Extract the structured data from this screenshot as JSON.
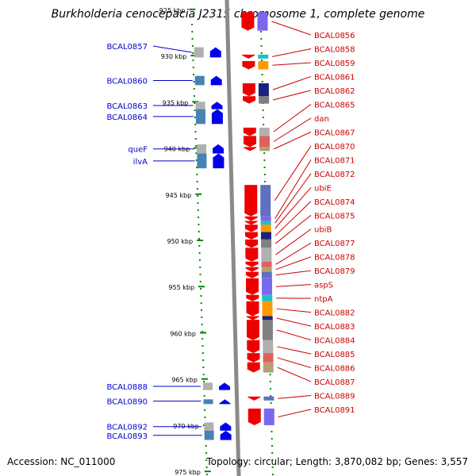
{
  "title": "Burkholderia cenocepacia J2315 chromosome 1, complete genome",
  "footer": {
    "accession": "Accession: NC_011000",
    "summary": "Topology: circular; Length: 3,870,082 bp; Genes: 3,557"
  },
  "colors": {
    "left_label": "#0000cc",
    "right_label": "#cc0000",
    "forward_gene": "#0000ee",
    "reverse_gene": "#ee0000",
    "ruler_tick": "#008800",
    "axis": "#808080"
  },
  "map": {
    "view_start_kbp": 924.5,
    "view_end_kbp": 975.5,
    "kbp_ticks": [
      925,
      930,
      935,
      940,
      945,
      950,
      955,
      960,
      965,
      970,
      975
    ],
    "kbp_unit": "kbp"
  },
  "left_genes": [
    {
      "name": "BCAL0857",
      "start_kbp": 929.1,
      "end_kbp": 930.2
    },
    {
      "name": "BCAL0860",
      "start_kbp": 932.2,
      "end_kbp": 933.2
    },
    {
      "name": "BCAL0863",
      "start_kbp": 935.0,
      "end_kbp": 935.8
    },
    {
      "name": "BCAL0864",
      "start_kbp": 935.8,
      "end_kbp": 937.4
    },
    {
      "name": "queF",
      "start_kbp": 939.6,
      "end_kbp": 940.6
    },
    {
      "name": "ilvA",
      "start_kbp": 940.6,
      "end_kbp": 942.2
    },
    {
      "name": "BCAL0888",
      "start_kbp": 965.4,
      "end_kbp": 966.2
    },
    {
      "name": "BCAL0890",
      "start_kbp": 967.2,
      "end_kbp": 967.6
    },
    {
      "name": "BCAL0892",
      "start_kbp": 969.7,
      "end_kbp": 970.6
    },
    {
      "name": "BCAL0893",
      "start_kbp": 970.6,
      "end_kbp": 971.6
    }
  ],
  "right_genes": [
    {
      "name": "BCAL0856",
      "start_kbp": 925.3,
      "end_kbp": 927.3
    },
    {
      "name": "BCAL0858",
      "start_kbp": 929.9,
      "end_kbp": 930.2
    },
    {
      "name": "BCAL0859",
      "start_kbp": 930.6,
      "end_kbp": 931.5
    },
    {
      "name": "BCAL0861",
      "start_kbp": 933.0,
      "end_kbp": 934.4
    },
    {
      "name": "BCAL0862",
      "start_kbp": 934.4,
      "end_kbp": 935.2
    },
    {
      "name": "BCAL0865",
      "start_kbp": 937.8,
      "end_kbp": 938.7
    },
    {
      "name": "dan",
      "start_kbp": 938.7,
      "end_kbp": 939.9
    },
    {
      "name": "BCAL0867",
      "start_kbp": 939.9,
      "end_kbp": 940.3
    },
    {
      "name": "BCAL0870",
      "start_kbp": 944.0,
      "end_kbp": 947.4
    },
    {
      "name": "BCAL0871",
      "start_kbp": 947.4,
      "end_kbp": 947.9
    },
    {
      "name": "BCAL0872",
      "start_kbp": 947.9,
      "end_kbp": 948.3
    },
    {
      "name": "ubiE",
      "start_kbp": 948.3,
      "end_kbp": 949.1
    },
    {
      "name": "BCAL0874",
      "start_kbp": 949.1,
      "end_kbp": 949.9
    },
    {
      "name": "BCAL0875",
      "start_kbp": 949.9,
      "end_kbp": 950.8
    },
    {
      "name": "ubiB",
      "start_kbp": 950.8,
      "end_kbp": 952.3
    },
    {
      "name": "BCAL0877",
      "start_kbp": 952.3,
      "end_kbp": 952.9
    },
    {
      "name": "BCAL0878",
      "start_kbp": 952.9,
      "end_kbp": 953.4
    },
    {
      "name": "BCAL0879",
      "start_kbp": 953.4,
      "end_kbp": 954.1
    },
    {
      "name": "aspS",
      "start_kbp": 954.1,
      "end_kbp": 955.9
    },
    {
      "name": "ntpA",
      "start_kbp": 955.9,
      "end_kbp": 956.6
    },
    {
      "name": "BCAL0882",
      "start_kbp": 956.6,
      "end_kbp": 958.2
    },
    {
      "name": "BCAL0883",
      "start_kbp": 958.2,
      "end_kbp": 958.6
    },
    {
      "name": "BCAL0884",
      "start_kbp": 958.6,
      "end_kbp": 960.8
    },
    {
      "name": "BCAL0885",
      "start_kbp": 960.8,
      "end_kbp": 962.2
    },
    {
      "name": "BCAL0886",
      "start_kbp": 962.2,
      "end_kbp": 963.2
    },
    {
      "name": "BCAL0887",
      "start_kbp": 963.2,
      "end_kbp": 964.3
    },
    {
      "name": "BCAL0889",
      "start_kbp": 966.9,
      "end_kbp": 967.2
    },
    {
      "name": "BCAL0891",
      "start_kbp": 968.2,
      "end_kbp": 970.0
    }
  ]
}
